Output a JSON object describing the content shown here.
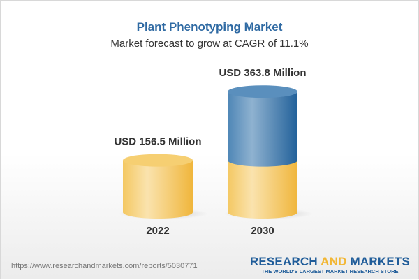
{
  "title": "Plant Phenotyping Market",
  "subtitle": "Market forecast to grow at CAGR of 11.1%",
  "chart_data": {
    "type": "bar",
    "style": "3d-cylinder",
    "categories": [
      "2022",
      "2030"
    ],
    "values": [
      156.5,
      363.8
    ],
    "data_labels": [
      "USD 156.5 Million",
      "USD 363.8 Million"
    ],
    "title": "Plant Phenotyping Market",
    "subtitle": "Market forecast to grow at CAGR of 11.1%",
    "xlabel": "",
    "ylabel": "",
    "grid": false,
    "colors": {
      "base": "#f2c35a",
      "growth": "#3f78aa"
    }
  },
  "footer": {
    "url": "https://www.researchandmarkets.com/reports/5030771",
    "logo_part1": "RESEARCH ",
    "logo_part2": "AND",
    "logo_part3": " MARKETS",
    "logo_tagline": "THE WORLD'S LARGEST MARKET RESEARCH STORE"
  }
}
